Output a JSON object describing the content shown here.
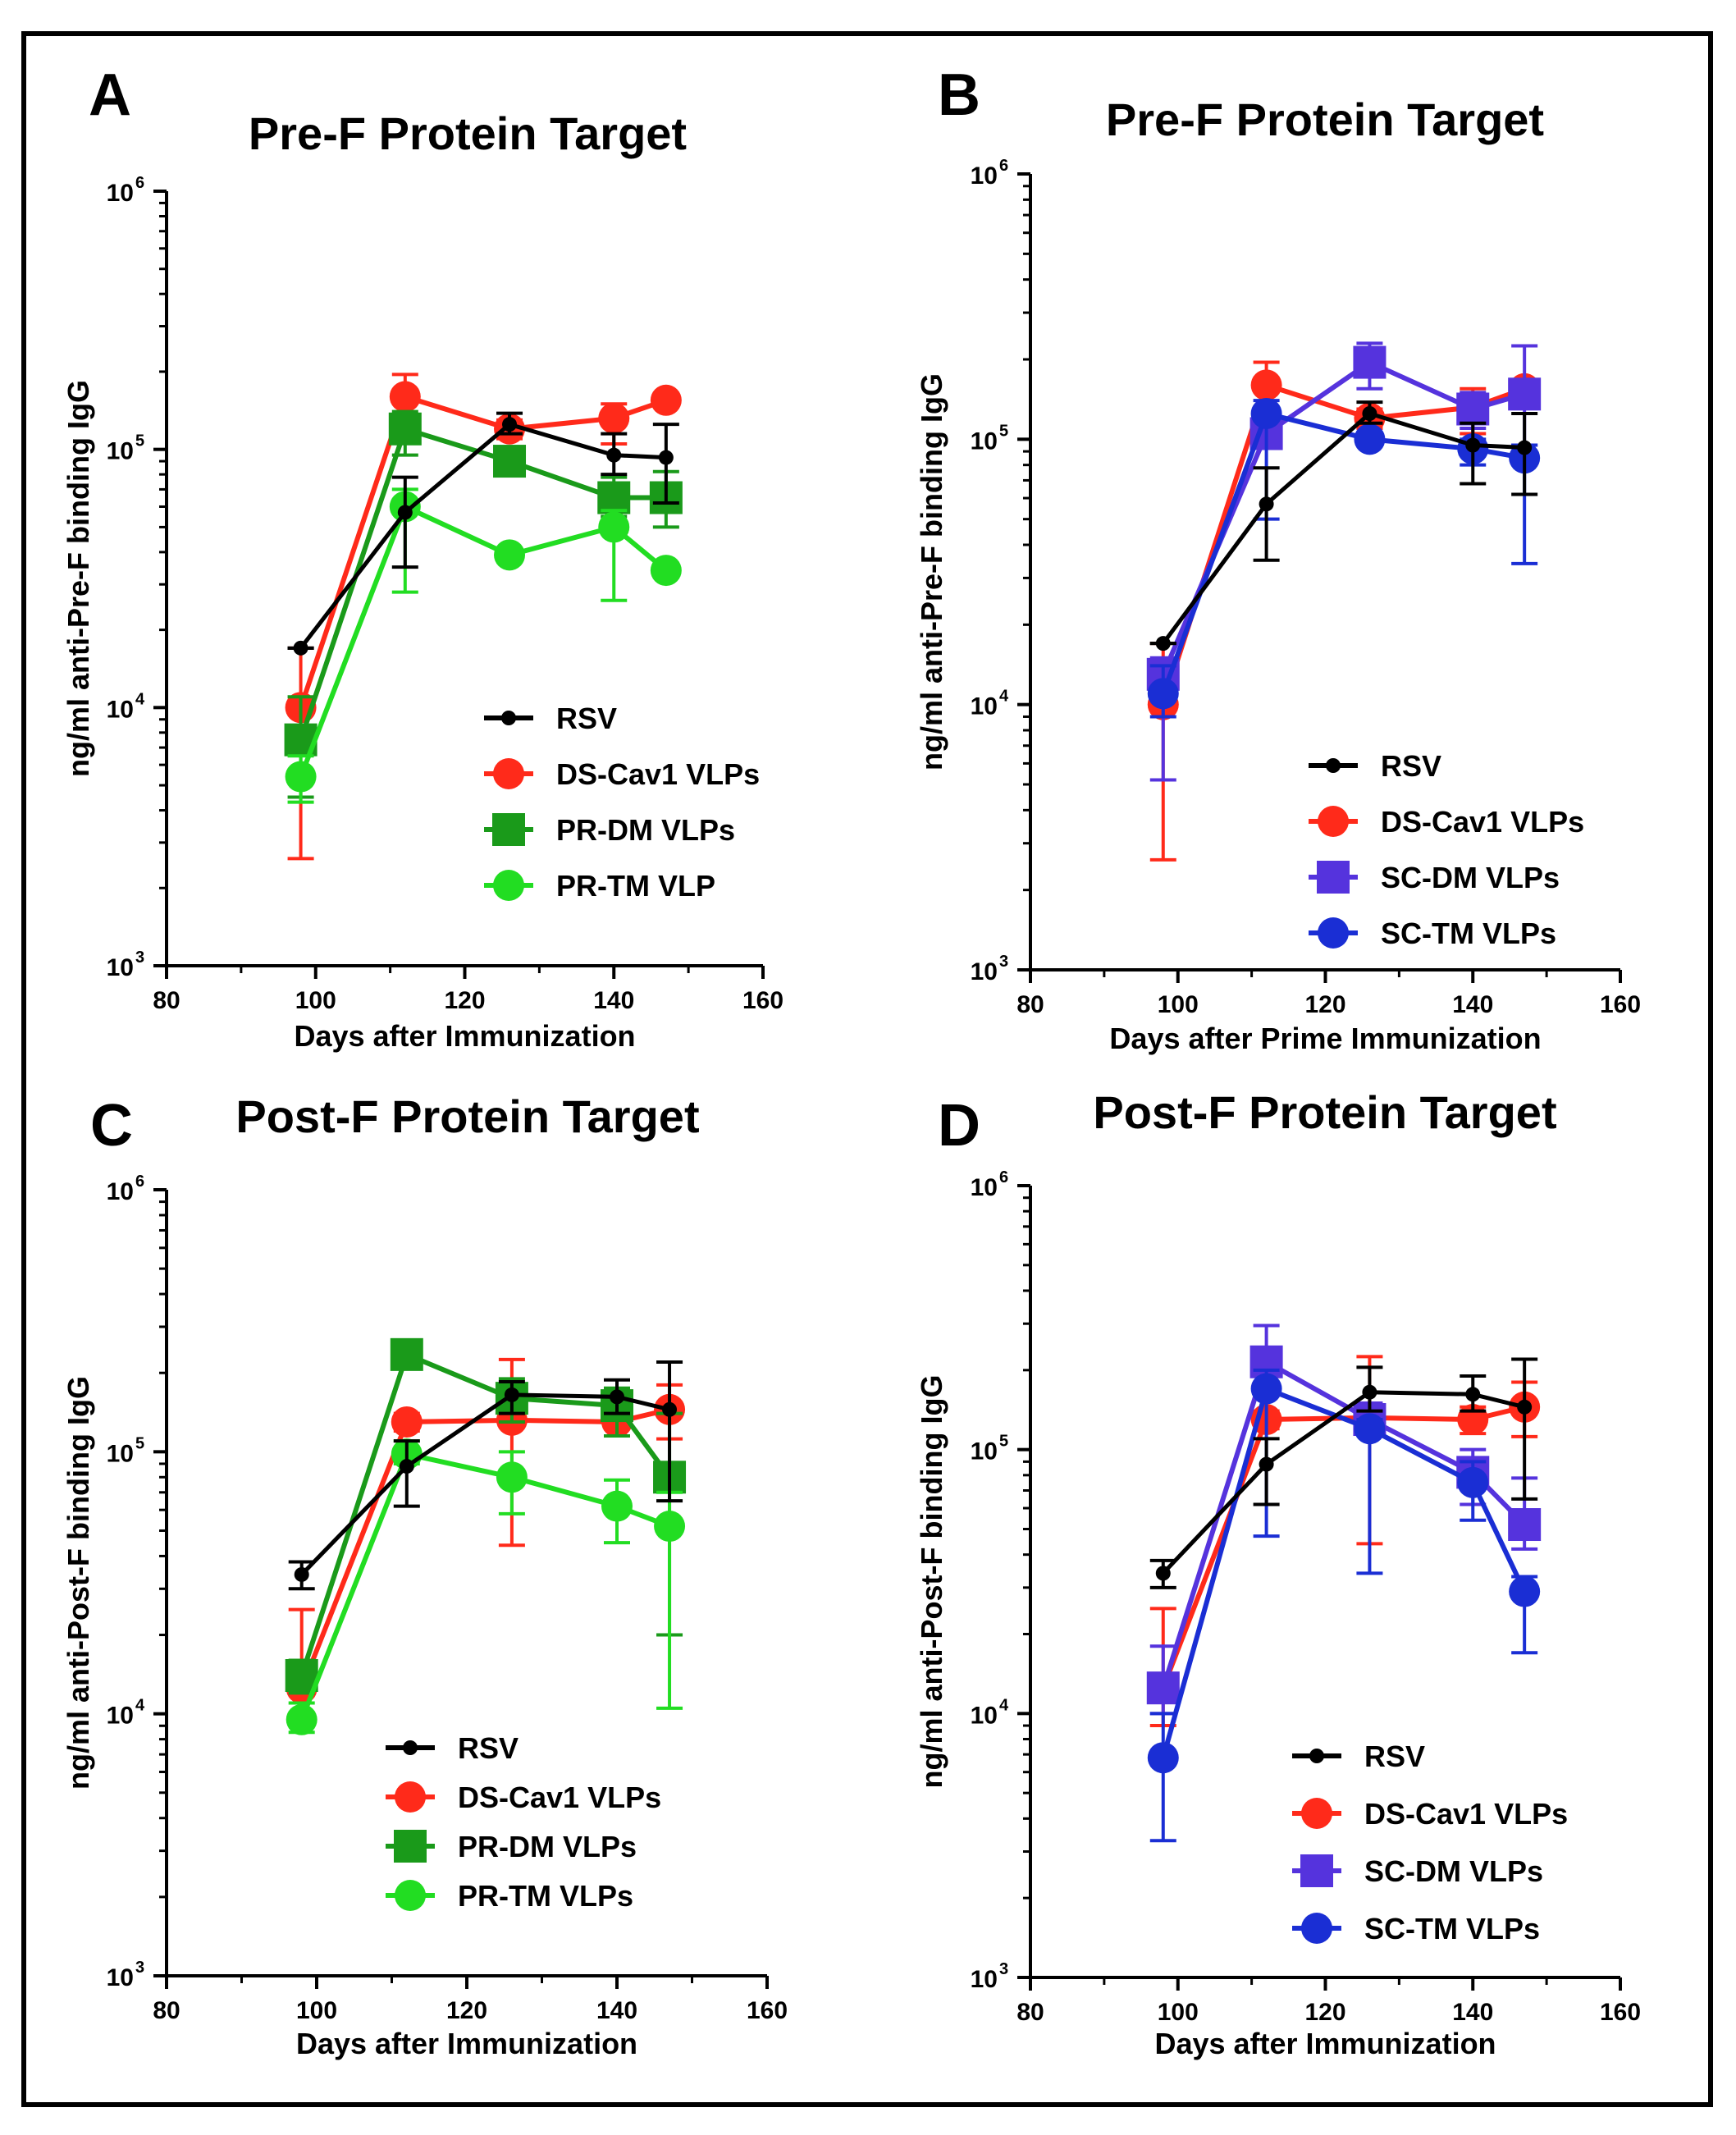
{
  "chart_data": [
    {
      "type": "line",
      "panel": "A",
      "title": "Pre-F Protein Target",
      "xlabel": "Days after Immunization",
      "ylabel": "ng/ml anti-Pre-F binding IgG",
      "xlim": [
        80,
        160
      ],
      "xticks": [
        "80",
        "100",
        "120",
        "140",
        "160"
      ],
      "ylim": [
        1000,
        1000000
      ],
      "yscale": "log",
      "yticks": [
        {
          "base": "10",
          "exp": "3"
        },
        {
          "base": "10",
          "exp": "4"
        },
        {
          "base": "10",
          "exp": "5"
        },
        {
          "base": "10",
          "exp": "6"
        }
      ],
      "legend": "bottom-right",
      "series": [
        {
          "name": "RSV",
          "color": "#000000",
          "marker": "circle-small",
          "x": [
            98,
            112,
            126,
            140,
            147
          ],
          "y": [
            17000,
            57000,
            125000,
            95000,
            93000
          ],
          "err": [
            [
              17000,
              17000
            ],
            [
              35000,
              78000
            ],
            [
              115000,
              138000
            ],
            [
              80000,
              115000
            ],
            [
              62000,
              125000
            ]
          ]
        },
        {
          "name": "DS-Cav1 VLPs",
          "color": "#ff2a1a",
          "marker": "circle",
          "x": [
            98,
            112,
            126,
            140,
            147
          ],
          "y": [
            10000,
            160000,
            120000,
            132000,
            155000
          ],
          "err": [
            [
              2600,
              17000
            ],
            [
              125000,
              195000
            ],
            [
              110000,
              130000
            ],
            [
              105000,
              150000
            ],
            [
              150000,
              160000
            ]
          ]
        },
        {
          "name": "PR-DM VLPs",
          "color": "#1a9a1a",
          "marker": "square",
          "x": [
            98,
            112,
            126,
            140,
            147
          ],
          "y": [
            7500,
            120000,
            90000,
            65000,
            65000
          ],
          "err": [
            [
              4500,
              11000
            ],
            [
              95000,
              140000
            ],
            [
              85000,
              95000
            ],
            [
              55000,
              78000
            ],
            [
              50000,
              82000
            ]
          ]
        },
        {
          "name": "PR-TM VLP",
          "color": "#22dd22",
          "marker": "circle",
          "x": [
            98,
            112,
            126,
            140,
            147
          ],
          "y": [
            5400,
            60000,
            39000,
            50000,
            34000
          ],
          "err": [
            [
              4300,
              6500
            ],
            [
              28000,
              70000
            ],
            [
              37000,
              41000
            ],
            [
              26000,
              58000
            ],
            [
              32000,
              36000
            ]
          ]
        }
      ]
    },
    {
      "type": "line",
      "panel": "B",
      "title": "Pre-F Protein Target",
      "xlabel": "Days after Prime Immunization",
      "ylabel": "ng/ml anti-Pre-F binding IgG",
      "xlim": [
        80,
        160
      ],
      "xticks": [
        "80",
        "100",
        "120",
        "140",
        "160"
      ],
      "ylim": [
        1000,
        1000000
      ],
      "yscale": "log",
      "yticks": [
        {
          "base": "10",
          "exp": "3"
        },
        {
          "base": "10",
          "exp": "4"
        },
        {
          "base": "10",
          "exp": "5"
        },
        {
          "base": "10",
          "exp": "6"
        }
      ],
      "legend": "bottom-right",
      "series": [
        {
          "name": "RSV",
          "color": "#000000",
          "marker": "circle-small",
          "x": [
            98,
            112,
            126,
            140,
            147
          ],
          "y": [
            17000,
            57000,
            125000,
            95000,
            93000
          ],
          "err": [
            [
              17000,
              17000
            ],
            [
              35000,
              78000
            ],
            [
              115000,
              138000
            ],
            [
              68000,
              115000
            ],
            [
              62000,
              125000
            ]
          ]
        },
        {
          "name": "DS-Cav1 VLPs",
          "color": "#ff2a1a",
          "marker": "circle",
          "x": [
            98,
            112,
            126,
            140,
            147
          ],
          "y": [
            10000,
            160000,
            120000,
            132000,
            155000
          ],
          "err": [
            [
              2600,
              17000
            ],
            [
              125000,
              195000
            ],
            [
              110000,
              130000
            ],
            [
              105000,
              155000
            ],
            [
              150000,
              160000
            ]
          ]
        },
        {
          "name": "SC-DM VLPs",
          "color": "#5533dd",
          "marker": "square",
          "x": [
            98,
            112,
            126,
            140,
            147
          ],
          "y": [
            13000,
            105000,
            195000,
            130000,
            148000
          ],
          "err": [
            [
              5200,
              15000
            ],
            [
              95000,
              115000
            ],
            [
              155000,
              230000
            ],
            [
              110000,
              150000
            ],
            [
              95000,
              225000
            ]
          ]
        },
        {
          "name": "SC-TM VLPs",
          "color": "#1a2ed4",
          "marker": "circle",
          "x": [
            98,
            112,
            126,
            140,
            147
          ],
          "y": [
            11000,
            125000,
            100000,
            92000,
            85000
          ],
          "err": [
            [
              9000,
              14000
            ],
            [
              50000,
              140000
            ],
            [
              95000,
              105000
            ],
            [
              80000,
              100000
            ],
            [
              34000,
              95000
            ]
          ]
        }
      ]
    },
    {
      "type": "line",
      "panel": "C",
      "title": "Post-F Protein Target",
      "xlabel": "Days after Immunization",
      "ylabel": "ng/ml anti-Post-F binding IgG",
      "xlim": [
        80,
        160
      ],
      "xticks": [
        "80",
        "100",
        "120",
        "140",
        "160"
      ],
      "ylim": [
        1000,
        1000000
      ],
      "yscale": "log",
      "yticks": [
        {
          "base": "10",
          "exp": "3"
        },
        {
          "base": "10",
          "exp": "4"
        },
        {
          "base": "10",
          "exp": "5"
        },
        {
          "base": "10",
          "exp": "6"
        }
      ],
      "legend": "bottom-right",
      "series": [
        {
          "name": "RSV",
          "color": "#000000",
          "marker": "circle-small",
          "x": [
            98,
            112,
            126,
            140,
            147
          ],
          "y": [
            34000,
            88000,
            165000,
            162000,
            145000
          ],
          "err": [
            [
              30000,
              38000
            ],
            [
              62000,
              110000
            ],
            [
              140000,
              185000
            ],
            [
              140000,
              188000
            ],
            [
              65000,
              220000
            ]
          ]
        },
        {
          "name": "DS-Cav1 VLPs",
          "color": "#ff2a1a",
          "marker": "circle",
          "x": [
            98,
            112,
            126,
            140,
            147
          ],
          "y": [
            12500,
            130000,
            132000,
            130000,
            145000
          ],
          "err": [
            [
              9000,
              25000
            ],
            [
              120000,
              140000
            ],
            [
              44000,
              225000
            ],
            [
              115000,
              145000
            ],
            [
              112000,
              180000
            ]
          ]
        },
        {
          "name": "PR-DM VLPs",
          "color": "#1a9a1a",
          "marker": "square",
          "x": [
            98,
            112,
            126,
            140,
            147
          ],
          "y": [
            14000,
            235000,
            160000,
            150000,
            80000
          ],
          "err": [
            [
              12000,
              16000
            ],
            [
              225000,
              245000
            ],
            [
              130000,
              190000
            ],
            [
              115000,
              175000
            ],
            [
              20000,
              140000
            ]
          ]
        },
        {
          "name": "PR-TM VLPs",
          "color": "#22dd22",
          "marker": "circle",
          "x": [
            98,
            112,
            126,
            140,
            147
          ],
          "y": [
            9500,
            98000,
            80000,
            62000,
            52000
          ],
          "err": [
            [
              8500,
              11000
            ],
            [
              90000,
              110000
            ],
            [
              58000,
              100000
            ],
            [
              45000,
              78000
            ],
            [
              10500,
              70000
            ]
          ]
        }
      ]
    },
    {
      "type": "line",
      "panel": "D",
      "title": "Post-F Protein Target",
      "xlabel": "Days after Immunization",
      "ylabel": "ng/ml anti-Post-F binding IgG",
      "xlim": [
        80,
        160
      ],
      "xticks": [
        "80",
        "100",
        "120",
        "140",
        "160"
      ],
      "ylim": [
        1000,
        1000000
      ],
      "yscale": "log",
      "yticks": [
        {
          "base": "10",
          "exp": "3"
        },
        {
          "base": "10",
          "exp": "4"
        },
        {
          "base": "10",
          "exp": "5"
        },
        {
          "base": "10",
          "exp": "6"
        }
      ],
      "legend": "bottom-right",
      "series": [
        {
          "name": "RSV",
          "color": "#000000",
          "marker": "circle-small",
          "x": [
            98,
            112,
            126,
            140,
            147
          ],
          "y": [
            34000,
            88000,
            165000,
            162000,
            145000
          ],
          "err": [
            [
              30000,
              38000
            ],
            [
              62000,
              110000
            ],
            [
              140000,
              205000
            ],
            [
              140000,
              190000
            ],
            [
              65000,
              220000
            ]
          ]
        },
        {
          "name": "DS-Cav1 VLPs",
          "color": "#ff2a1a",
          "marker": "circle",
          "x": [
            98,
            112,
            126,
            140,
            147
          ],
          "y": [
            12500,
            130000,
            132000,
            130000,
            145000
          ],
          "err": [
            [
              9000,
              25000
            ],
            [
              120000,
              140000
            ],
            [
              44000,
              225000
            ],
            [
              115000,
              145000
            ],
            [
              112000,
              180000
            ]
          ]
        },
        {
          "name": "SC-DM VLPs",
          "color": "#5533dd",
          "marker": "square",
          "x": [
            98,
            112,
            126,
            140,
            147
          ],
          "y": [
            12500,
            215000,
            130000,
            82000,
            52000
          ],
          "err": [
            [
              10000,
              18000
            ],
            [
              170000,
              295000
            ],
            [
              115000,
              150000
            ],
            [
              62000,
              100000
            ],
            [
              42000,
              78000
            ]
          ]
        },
        {
          "name": "SC-TM VLPs",
          "color": "#1a2ed4",
          "marker": "circle",
          "x": [
            98,
            112,
            126,
            140,
            147
          ],
          "y": [
            6800,
            170000,
            120000,
            75000,
            29000
          ],
          "err": [
            [
              3300,
              10000
            ],
            [
              47000,
              200000
            ],
            [
              34000,
              130000
            ],
            [
              54000,
              90000
            ],
            [
              17000,
              33000
            ]
          ]
        }
      ]
    }
  ]
}
